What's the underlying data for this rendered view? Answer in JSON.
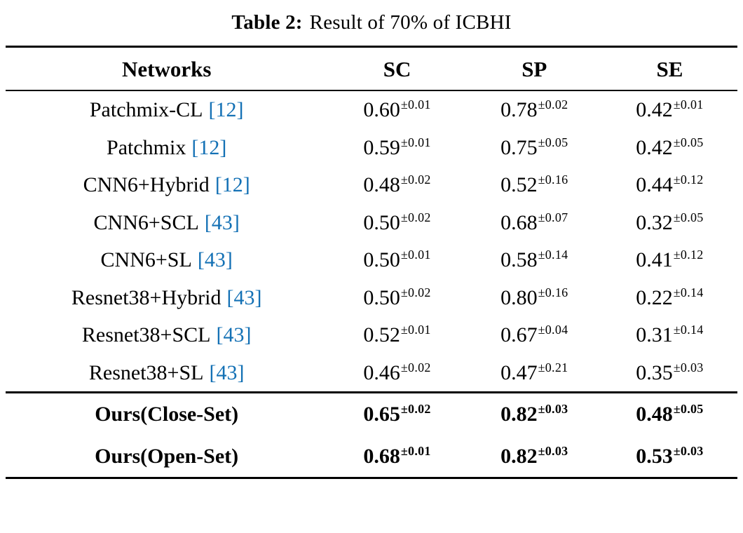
{
  "caption": {
    "label": "Table 2:",
    "text": "Result of 70% of ICBHI"
  },
  "colors": {
    "citation": "#1471b5"
  },
  "table": {
    "headers": [
      "Networks",
      "SC",
      "SP",
      "SE"
    ],
    "rows": [
      {
        "network": "Patchmix-CL",
        "cite": "[12]",
        "sc": {
          "value": "0.60",
          "pm": "±0.01"
        },
        "sp": {
          "value": "0.78",
          "pm": "±0.02"
        },
        "se": {
          "value": "0.42",
          "pm": "±0.01"
        }
      },
      {
        "network": "Patchmix",
        "cite": "[12]",
        "sc": {
          "value": "0.59",
          "pm": "±0.01"
        },
        "sp": {
          "value": "0.75",
          "pm": "±0.05"
        },
        "se": {
          "value": "0.42",
          "pm": "±0.05"
        }
      },
      {
        "network": "CNN6+Hybrid",
        "cite": "[12]",
        "sc": {
          "value": "0.48",
          "pm": "±0.02"
        },
        "sp": {
          "value": "0.52",
          "pm": "±0.16"
        },
        "se": {
          "value": "0.44",
          "pm": "±0.12"
        }
      },
      {
        "network": "CNN6+SCL",
        "cite": "[43]",
        "sc": {
          "value": "0.50",
          "pm": "±0.02"
        },
        "sp": {
          "value": "0.68",
          "pm": "±0.07"
        },
        "se": {
          "value": "0.32",
          "pm": "±0.05"
        }
      },
      {
        "network": "CNN6+SL",
        "cite": "[43]",
        "sc": {
          "value": "0.50",
          "pm": "±0.01"
        },
        "sp": {
          "value": "0.58",
          "pm": "±0.14"
        },
        "se": {
          "value": "0.41",
          "pm": "±0.12"
        }
      },
      {
        "network": "Resnet38+Hybrid",
        "cite": "[43]",
        "sc": {
          "value": "0.50",
          "pm": "±0.02"
        },
        "sp": {
          "value": "0.80",
          "pm": "±0.16"
        },
        "se": {
          "value": "0.22",
          "pm": "±0.14"
        }
      },
      {
        "network": "Resnet38+SCL",
        "cite": "[43]",
        "sc": {
          "value": "0.52",
          "pm": "±0.01"
        },
        "sp": {
          "value": "0.67",
          "pm": "±0.04"
        },
        "se": {
          "value": "0.31",
          "pm": "±0.14"
        }
      },
      {
        "network": "Resnet38+SL",
        "cite": "[43]",
        "sc": {
          "value": "0.46",
          "pm": "±0.02"
        },
        "sp": {
          "value": "0.47",
          "pm": "±0.21"
        },
        "se": {
          "value": "0.35",
          "pm": "±0.03"
        }
      }
    ],
    "ours": [
      {
        "network": "Ours(Close-Set)",
        "sc": {
          "value": "0.65",
          "pm": "±0.02"
        },
        "sp": {
          "value": "0.82",
          "pm": "±0.03"
        },
        "se": {
          "value": "0.48",
          "pm": "±0.05"
        }
      },
      {
        "network": "Ours(Open-Set)",
        "sc": {
          "value": "0.68",
          "pm": "±0.01"
        },
        "sp": {
          "value": "0.82",
          "pm": "±0.03"
        },
        "se": {
          "value": "0.53",
          "pm": "±0.03"
        }
      }
    ]
  }
}
